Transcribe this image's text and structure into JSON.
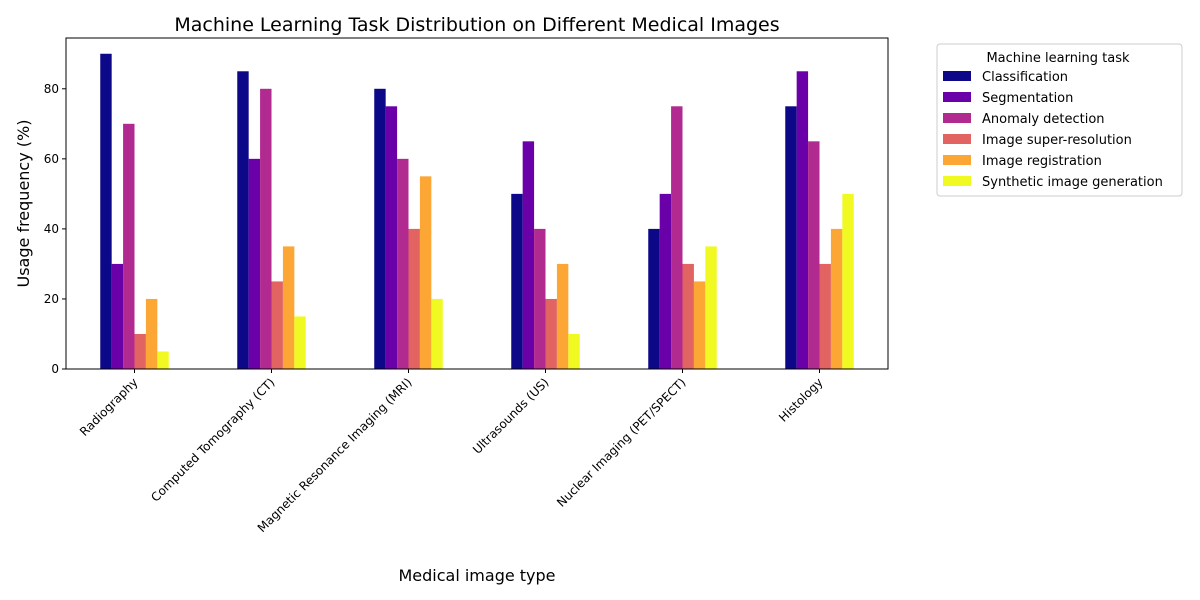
{
  "chart_data": {
    "type": "bar",
    "title": "Machine Learning Task Distribution on Different Medical Images",
    "xlabel": "Medical image type",
    "ylabel": "Usage frequency (%)",
    "categories": [
      "Radiography",
      "Computed Tomography (CT)",
      "Magnetic Resonance Imaging (MRI)",
      "Ultrasounds (US)",
      "Nuclear Imaging (PET/SPECT)",
      "Histology"
    ],
    "series": [
      {
        "name": "Classification",
        "color": "#0d0887",
        "values": [
          90,
          85,
          80,
          50,
          40,
          75
        ]
      },
      {
        "name": "Segmentation",
        "color": "#6a00a8",
        "values": [
          30,
          60,
          75,
          65,
          50,
          85
        ]
      },
      {
        "name": "Anomaly detection",
        "color": "#b12a90",
        "values": [
          70,
          80,
          60,
          40,
          75,
          65
        ]
      },
      {
        "name": "Image super-resolution",
        "color": "#e16462",
        "values": [
          10,
          25,
          40,
          20,
          30,
          30
        ]
      },
      {
        "name": "Image registration",
        "color": "#fca636",
        "values": [
          20,
          35,
          55,
          30,
          25,
          40
        ]
      },
      {
        "name": "Synthetic image generation",
        "color": "#f0f921",
        "values": [
          5,
          15,
          20,
          10,
          35,
          50
        ]
      }
    ],
    "ylim": [
      0,
      94.5
    ],
    "yticks": [
      0,
      20,
      40,
      60,
      80
    ],
    "grid": false,
    "legend": {
      "title": "Machine learning task",
      "placement": "outside-upper-right"
    }
  }
}
